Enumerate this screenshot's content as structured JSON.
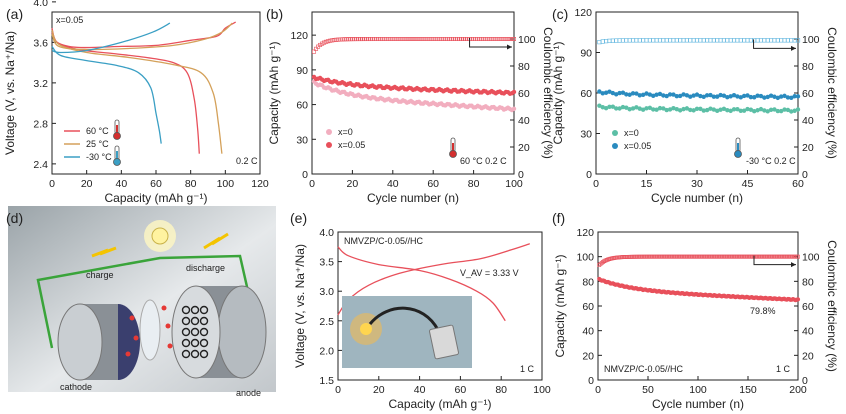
{
  "chart_data": [
    {
      "panel": "(a)",
      "type": "line",
      "xlabel": "Capacity (mAh g⁻¹)",
      "ylabel": "Voltage (V, vs. Na⁺/Na)",
      "xlim": [
        0,
        120
      ],
      "ylim": [
        2.3,
        3.9
      ],
      "xticks": [
        0,
        20,
        40,
        60,
        80,
        100,
        120
      ],
      "yticks": [
        2.4,
        2.8,
        3.2,
        3.6,
        4.0
      ],
      "annotations": [
        "x=0.05",
        "0.2 C"
      ],
      "legend": [
        "60 °C",
        "25 °C",
        "-30 °C"
      ],
      "series": [
        {
          "name": "60 °C",
          "color": "#e8505b",
          "charge": [
            [
              0,
              3.7
            ],
            [
              3,
              3.6
            ],
            [
              15,
              3.55
            ],
            [
              40,
              3.56
            ],
            [
              60,
              3.57
            ],
            [
              80,
              3.62
            ],
            [
              95,
              3.66
            ],
            [
              100,
              3.74
            ],
            [
              106,
              3.8
            ]
          ],
          "discharge": [
            [
              0,
              3.74
            ],
            [
              3,
              3.6
            ],
            [
              15,
              3.53
            ],
            [
              35,
              3.49
            ],
            [
              55,
              3.45
            ],
            [
              70,
              3.4
            ],
            [
              78,
              3.3
            ],
            [
              82,
              3.05
            ],
            [
              84,
              2.75
            ],
            [
              85,
              2.5
            ]
          ]
        },
        {
          "name": "25 °C",
          "color": "#d4a15a",
          "charge": [
            [
              0,
              3.68
            ],
            [
              4,
              3.56
            ],
            [
              20,
              3.53
            ],
            [
              45,
              3.54
            ],
            [
              70,
              3.57
            ],
            [
              88,
              3.63
            ],
            [
              98,
              3.7
            ],
            [
              104,
              3.79
            ]
          ],
          "discharge": [
            [
              0,
              3.72
            ],
            [
              4,
              3.58
            ],
            [
              20,
              3.5
            ],
            [
              45,
              3.45
            ],
            [
              70,
              3.38
            ],
            [
              86,
              3.3
            ],
            [
              93,
              3.1
            ],
            [
              96,
              2.8
            ],
            [
              98,
              2.5
            ]
          ]
        },
        {
          "name": "-30 °C",
          "color": "#3a9fc4",
          "charge": [
            [
              0,
              3.52
            ],
            [
              5,
              3.5
            ],
            [
              20,
              3.52
            ],
            [
              40,
              3.6
            ],
            [
              58,
              3.7
            ],
            [
              68,
              3.79
            ]
          ],
          "discharge": [
            [
              0,
              3.56
            ],
            [
              5,
              3.47
            ],
            [
              20,
              3.42
            ],
            [
              38,
              3.37
            ],
            [
              50,
              3.3
            ],
            [
              57,
              3.15
            ],
            [
              60,
              2.9
            ],
            [
              62,
              2.72
            ],
            [
              63,
              2.6
            ]
          ]
        }
      ]
    },
    {
      "panel": "(b)",
      "type": "scatter",
      "xlabel": "Cycle number (n)",
      "ylabel": "Capacity (mAh g⁻¹)",
      "y2label": "Coulombic efficiency (%)",
      "xlim": [
        0,
        100
      ],
      "ylim": [
        0,
        140
      ],
      "y2lim": [
        0,
        120
      ],
      "xticks": [
        0,
        20,
        40,
        60,
        80,
        100
      ],
      "yticks": [
        0,
        30,
        60,
        90,
        120
      ],
      "y2ticks": [
        0,
        20,
        40,
        60,
        80,
        100
      ],
      "annotations": [
        "60 °C  0.2 C"
      ],
      "legend": [
        "x=0",
        "x=0.05"
      ],
      "series": [
        {
          "name": "x=0",
          "color": "#f2aebf",
          "capacity_first": 80,
          "capacity_last": 56
        },
        {
          "name": "x=0.05",
          "color": "#e8505b",
          "capacity_first": 84,
          "capacity_last": 70
        }
      ],
      "efficiency": {
        "color": "#e8505b",
        "first": 88,
        "plateau": 100
      }
    },
    {
      "panel": "(c)",
      "type": "scatter",
      "xlabel": "Cycle number (n)",
      "ylabel": "Capacity (mAh g⁻¹)",
      "y2label": "Coulombic efficiency (%)",
      "xlim": [
        0,
        60
      ],
      "ylim": [
        0,
        120
      ],
      "y2lim": [
        0,
        120
      ],
      "xticks": [
        0,
        15,
        30,
        45,
        60
      ],
      "yticks": [
        0,
        30,
        60,
        90,
        120
      ],
      "y2ticks": [
        0,
        20,
        40,
        60,
        80,
        100
      ],
      "annotations": [
        "-30 °C  0.2 C"
      ],
      "legend": [
        "x=0",
        "x=0.05"
      ],
      "series": [
        {
          "name": "x=0",
          "color": "#5cbfa6",
          "capacity_first": 50,
          "capacity_last": 47
        },
        {
          "name": "x=0.05",
          "color": "#2a8bbf",
          "capacity_first": 61,
          "capacity_last": 57
        }
      ],
      "efficiency": {
        "color": "#5db4de",
        "first": 97,
        "plateau": 99
      }
    },
    {
      "panel": "(e)",
      "type": "line",
      "xlabel": "Capacity (mAh g⁻¹)",
      "ylabel": "Voltage (V, vs. Na⁺/Na)",
      "xlim": [
        0,
        100
      ],
      "ylim": [
        1.5,
        4.0
      ],
      "xticks": [
        0,
        20,
        40,
        60,
        80,
        100
      ],
      "yticks": [
        1.5,
        2.0,
        2.5,
        3.0,
        3.5,
        4.0
      ],
      "annotations": [
        "NMVZP/C-0.05//HC",
        "V_AV = 3.33 V",
        "1 C"
      ],
      "series": [
        {
          "name": "charge",
          "color": "#e8505b",
          "points": [
            [
              0,
              2.6
            ],
            [
              5,
              2.85
            ],
            [
              15,
              3.1
            ],
            [
              30,
              3.3
            ],
            [
              50,
              3.45
            ],
            [
              70,
              3.55
            ],
            [
              85,
              3.7
            ],
            [
              94,
              3.8
            ]
          ]
        },
        {
          "name": "discharge",
          "color": "#e8505b",
          "points": [
            [
              0,
              3.75
            ],
            [
              5,
              3.6
            ],
            [
              20,
              3.45
            ],
            [
              40,
              3.35
            ],
            [
              55,
              3.2
            ],
            [
              68,
              3.0
            ],
            [
              76,
              2.8
            ],
            [
              82,
              2.5
            ]
          ]
        }
      ]
    },
    {
      "panel": "(f)",
      "type": "scatter",
      "xlabel": "Cycle number (n)",
      "ylabel": "Capacity (mAh g⁻¹)",
      "y2label": "Coulombic efficiency (%)",
      "xlim": [
        0,
        200
      ],
      "ylim": [
        0,
        120
      ],
      "y2lim": [
        0,
        120
      ],
      "xticks": [
        0,
        50,
        100,
        150,
        200
      ],
      "yticks": [
        0,
        20,
        40,
        60,
        80,
        100,
        120
      ],
      "y2ticks": [
        0,
        20,
        40,
        60,
        80,
        100
      ],
      "annotations": [
        "NMVZP/C-0.05//HC",
        "1 C",
        "79.8%"
      ],
      "series": [
        {
          "name": "capacity",
          "color": "#e8505b",
          "capacity_first": 82,
          "capacity_last": 65
        }
      ],
      "efficiency": {
        "color": "#e8505b",
        "first": 92,
        "plateau": 100
      }
    }
  ],
  "schematic": {
    "panel": "(d)",
    "labels": {
      "charge": "charge",
      "discharge": "discharge",
      "cathode": "cathode",
      "anode": "anode"
    }
  }
}
